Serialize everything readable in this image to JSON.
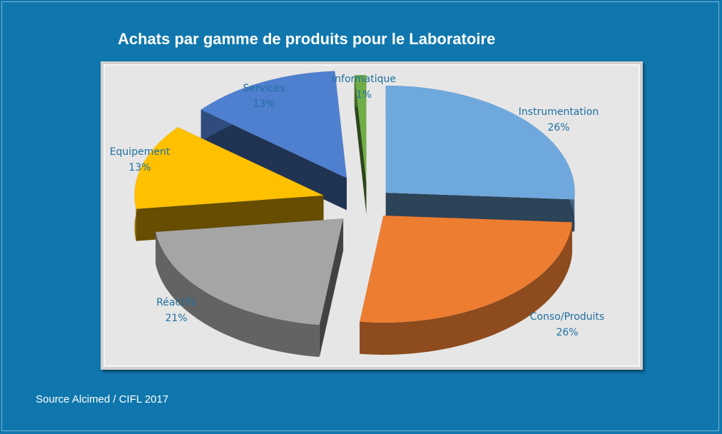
{
  "chart_data": {
    "type": "pie",
    "title": "Achats par gamme de produits pour le Laboratoire",
    "categories": [
      "Instrumentation",
      "Conso/Produits",
      "Réactifs",
      "Equipement",
      "Services",
      "Informatique"
    ],
    "values": [
      26,
      26,
      21,
      13,
      13,
      1
    ],
    "labels": [
      "26%",
      "26%",
      "21%",
      "13%",
      "13%",
      "1%"
    ],
    "colors": [
      "#6fa8dc",
      "#ed7d31",
      "#a5a5a5",
      "#ffc000",
      "#4f7fcf",
      "#70ad47"
    ],
    "style": "3d-exploded"
  },
  "source": "Source Alcimed / CIFL 2017"
}
